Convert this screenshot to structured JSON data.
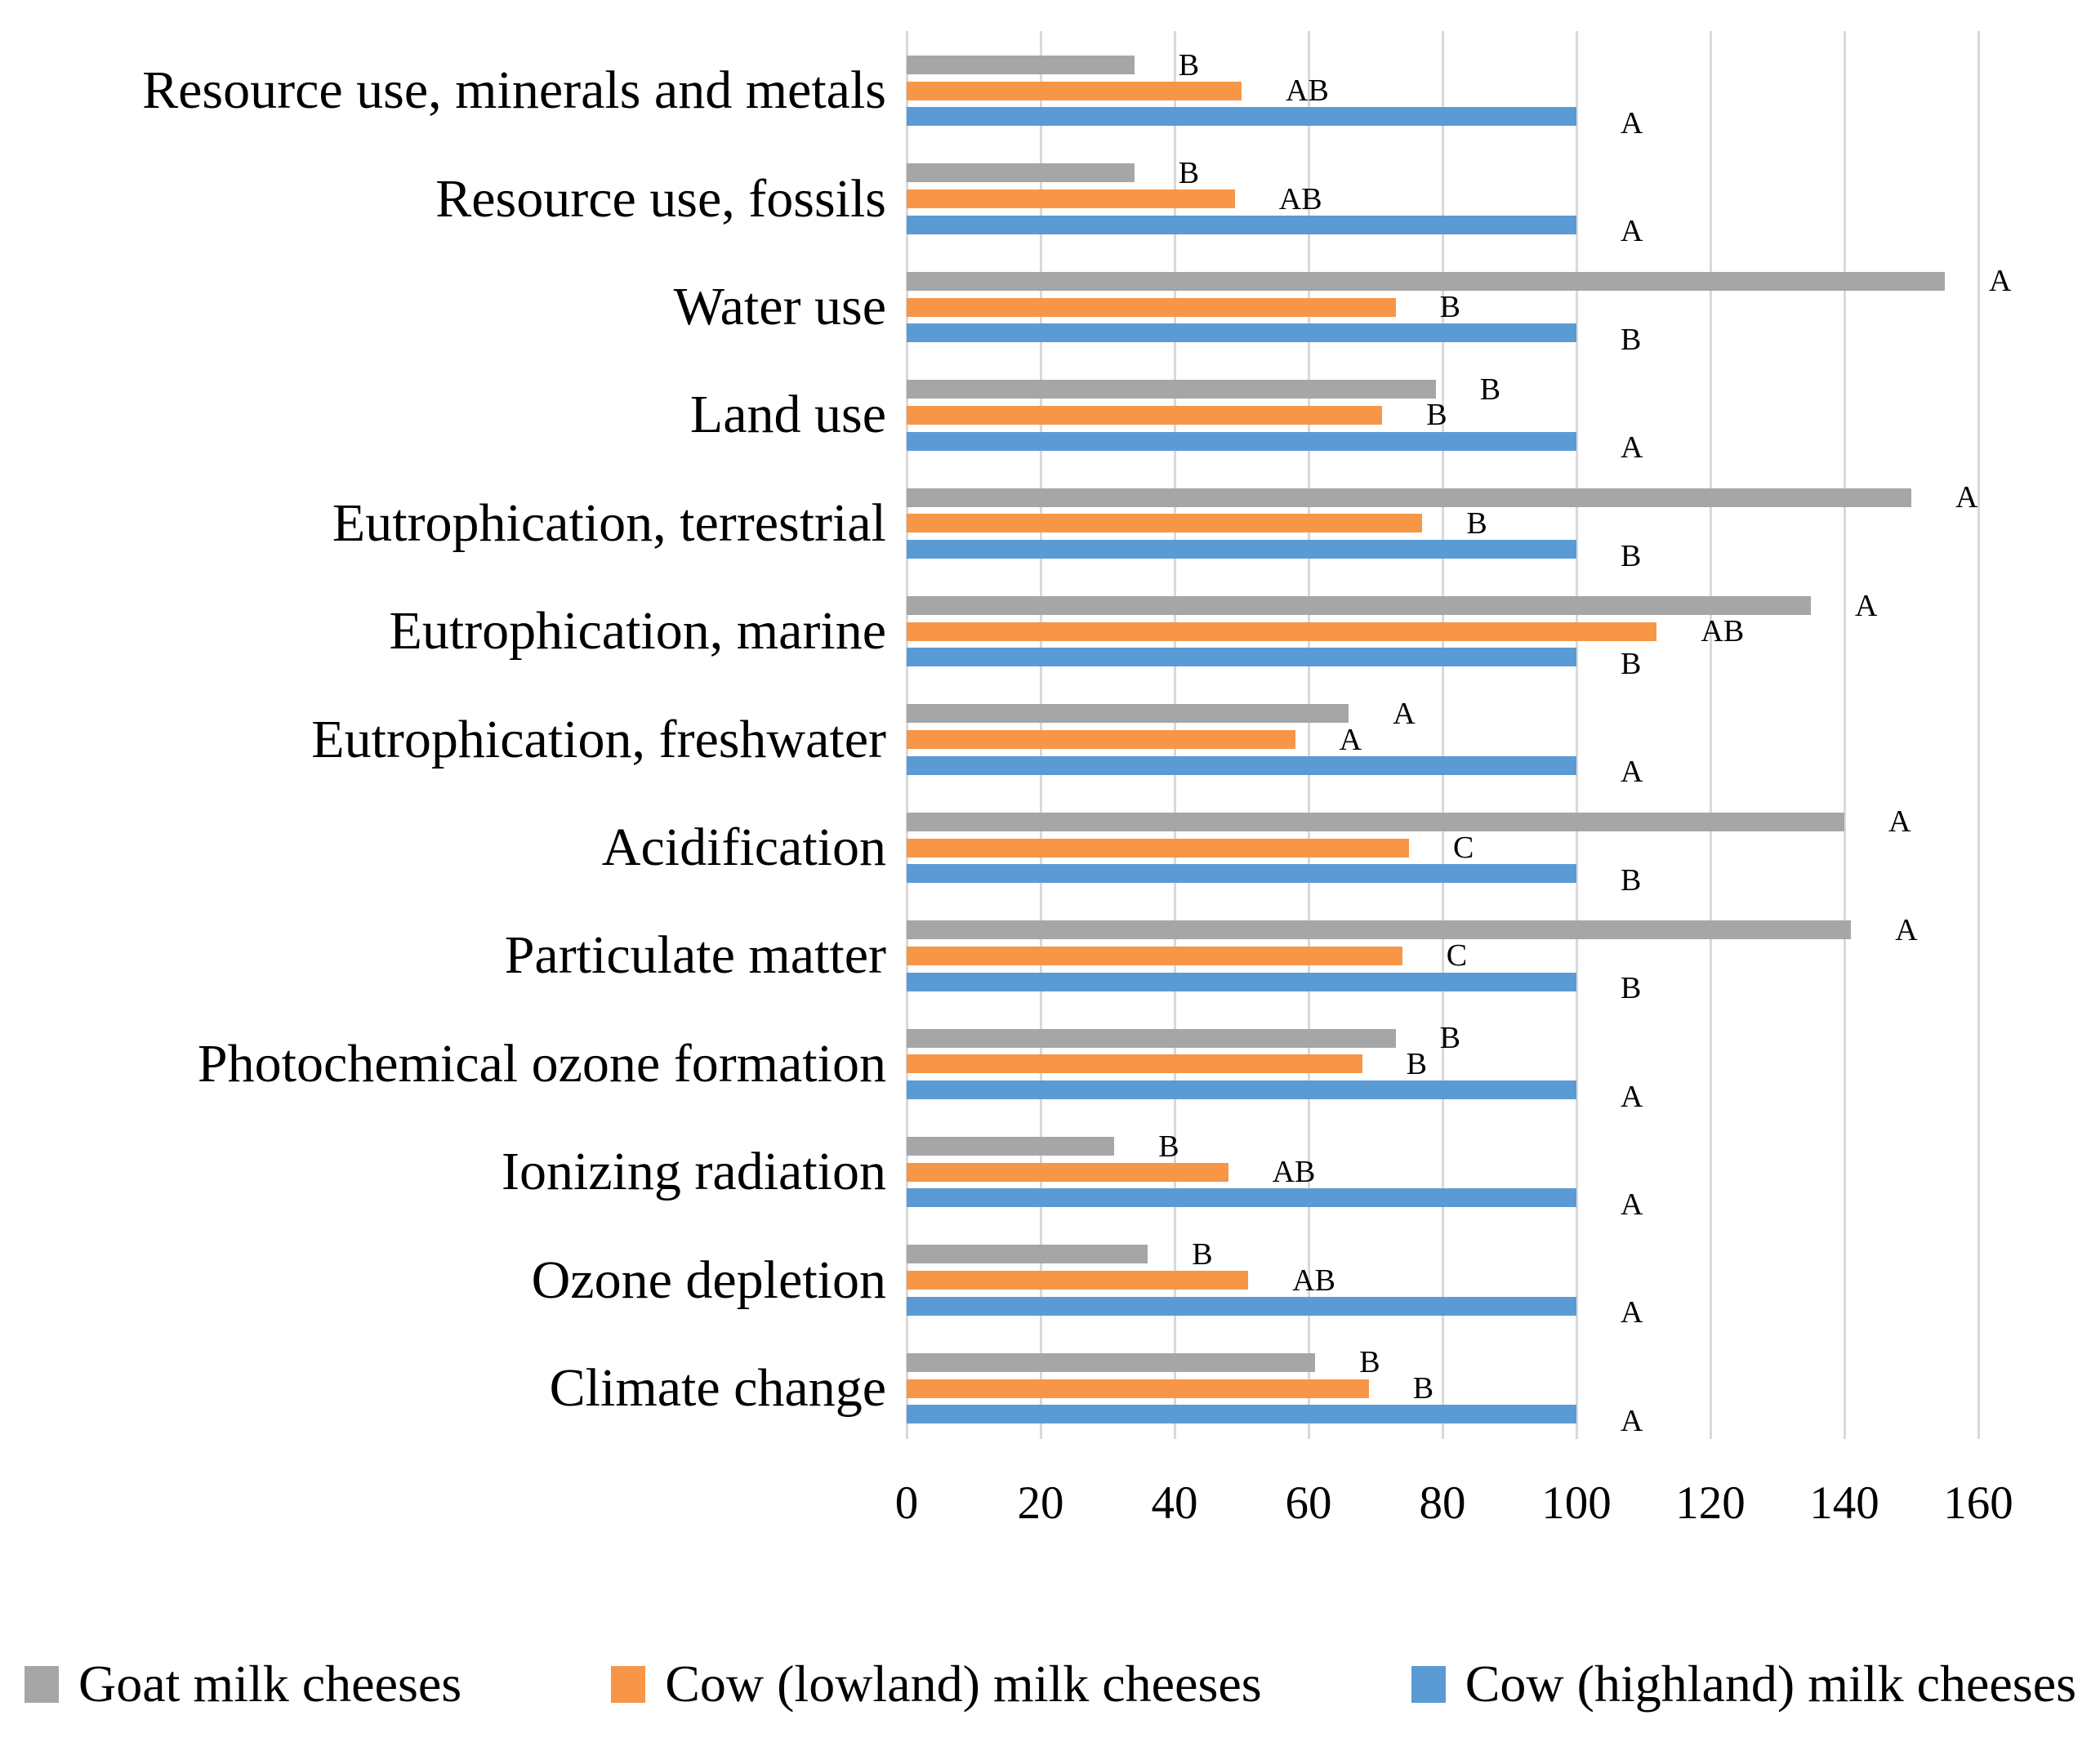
{
  "chart_data": {
    "type": "bar",
    "orientation": "horizontal",
    "title": "",
    "xlabel": "",
    "ylabel": "",
    "xlim": [
      0,
      160
    ],
    "x_ticks": [
      0,
      20,
      40,
      60,
      80,
      100,
      120,
      140,
      160
    ],
    "grid": true,
    "legend_position": "bottom",
    "categories": [
      "Resource use, minerals and metals",
      "Resource use, fossils",
      "Water use",
      "Land use",
      "Eutrophication, terrestrial",
      "Eutrophication, marine",
      "Eutrophication, freshwater",
      "Acidification",
      "Particulate matter",
      "Photochemical ozone formation",
      "Ionizing radiation",
      "Ozone depletion",
      "Climate change"
    ],
    "series": [
      {
        "name": "Goat milk cheeses",
        "color": "#A6A6A6",
        "values": [
          34,
          34,
          155,
          79,
          150,
          135,
          66,
          140,
          141,
          73,
          31,
          36,
          61
        ],
        "sig_letters": [
          "B",
          "B",
          "A",
          "B",
          "A",
          "A",
          "A",
          "A",
          "A",
          "B",
          "B",
          "B",
          "B"
        ]
      },
      {
        "name": "Cow (lowland) milk cheeses",
        "color": "#F79646",
        "values": [
          50,
          49,
          73,
          71,
          77,
          112,
          58,
          75,
          74,
          68,
          48,
          51,
          69
        ],
        "sig_letters": [
          "AB",
          "AB",
          "B",
          "B",
          "B",
          "AB",
          "A",
          "C",
          "C",
          "B",
          "AB",
          "AB",
          "B"
        ]
      },
      {
        "name": "Cow (highland) milk cheeses",
        "color": "#5B9BD5",
        "values": [
          100,
          100,
          100,
          100,
          100,
          100,
          100,
          100,
          100,
          100,
          100,
          100,
          100
        ],
        "sig_letters": [
          "A",
          "A",
          "B",
          "A",
          "B",
          "B",
          "A",
          "B",
          "B",
          "A",
          "A",
          "A",
          "A"
        ]
      }
    ],
    "gridline_color": "#D9D9D9"
  }
}
